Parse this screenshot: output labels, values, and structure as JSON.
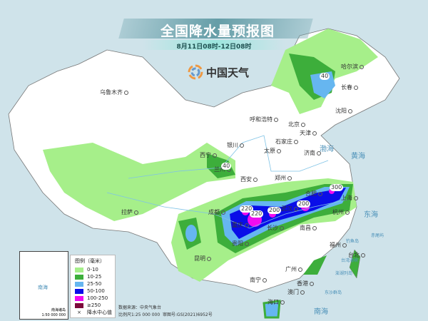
{
  "header": {
    "title": "全国降水量预报图",
    "subtitle": "8月11日08时-12日08时",
    "logo_text": "中国天气"
  },
  "legend": {
    "title": "图例（毫米）",
    "items": [
      {
        "label": "0-10",
        "color": "#a6ef8a"
      },
      {
        "label": "10-25",
        "color": "#3dae3b"
      },
      {
        "label": "25-50",
        "color": "#66b6f0"
      },
      {
        "label": "50-100",
        "color": "#0a0ee8"
      },
      {
        "label": "100-250",
        "color": "#f00cf0"
      },
      {
        "label": "≥250",
        "color": "#7c0a3c"
      }
    ],
    "center_marker": "降水中心值",
    "center_icon": "x-mark-icon"
  },
  "footer": {
    "source": "数据来源：中央气象台",
    "scale": "比例尺1:25 000 000",
    "approval": "审图号:GS(2021)6952号"
  },
  "inset": {
    "label": "南海诸岛",
    "scale": "1:50 000 000",
    "sea": "南海"
  },
  "cities": [
    "乌鲁木齐",
    "哈尔滨",
    "长春",
    "沈阳",
    "呼和浩特",
    "北京",
    "天津",
    "石家庄",
    "太原",
    "济南",
    "银川",
    "西宁",
    "兰州",
    "西安",
    "郑州",
    "合肥",
    "上海",
    "武汉",
    "杭州",
    "成都",
    "重庆",
    "长沙",
    "南昌",
    "贵阳",
    "昆明",
    "福州",
    "台北",
    "南宁",
    "广州",
    "香港",
    "澳门",
    "海口",
    "拉萨"
  ],
  "seas": [
    "渤海",
    "黄海",
    "东海",
    "南海",
    "台湾海峡",
    "澎湖列岛",
    "东沙群岛",
    "钓鱼岛",
    "赤尾屿"
  ],
  "rain_centers": [
    "40",
    "40",
    "220",
    "220",
    "200",
    "200",
    "300"
  ]
}
